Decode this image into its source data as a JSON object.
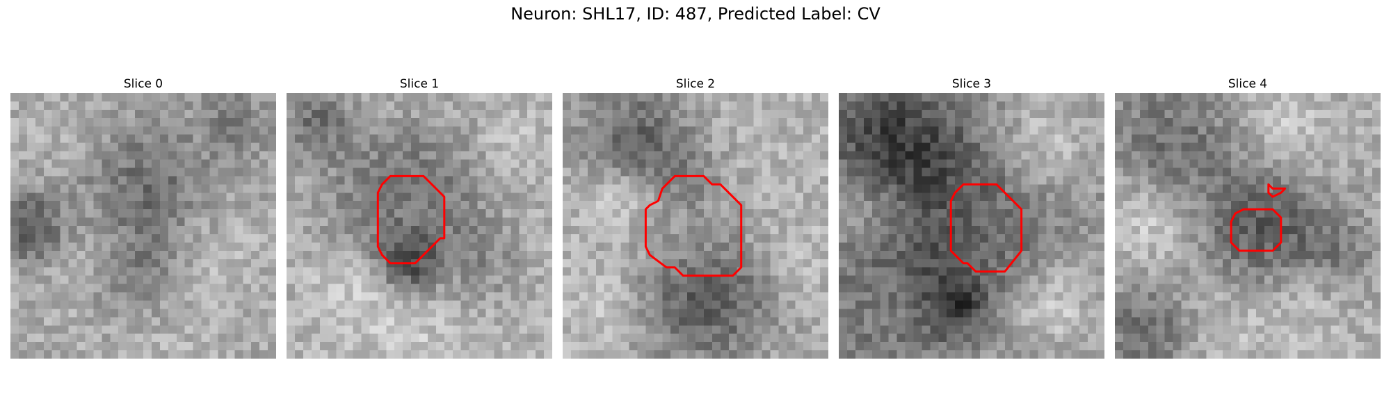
{
  "figure": {
    "title": "Neuron: SHL17, ID: 487, Predicted Label: CV"
  },
  "panels": [
    {
      "title": "Slice 0"
    },
    {
      "title": "Slice 1"
    },
    {
      "title": "Slice 2"
    },
    {
      "title": "Slice 3"
    },
    {
      "title": "Slice 4"
    }
  ],
  "colors": {
    "contour": "#ff0000",
    "background": "#ffffff"
  },
  "colormap": "gray",
  "image_grid": "32x32"
}
